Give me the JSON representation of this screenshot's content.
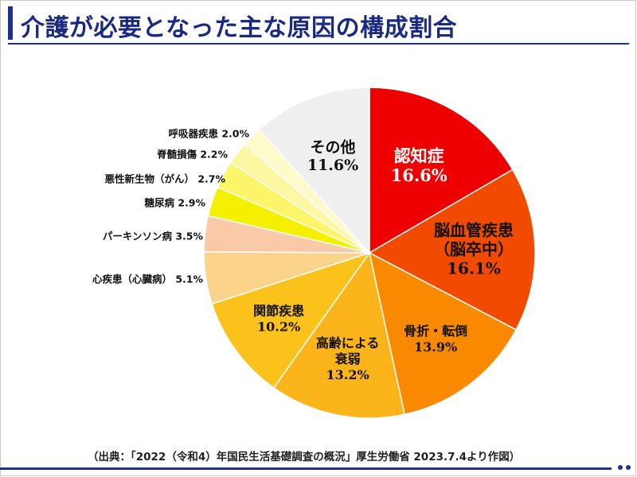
{
  "page": {
    "title": "介護が必要となった主な原因の構成割合",
    "source": "（出典：「2022（令和4）年国民生活基礎調査の概況」厚生労働省 2023.7.4より作図）"
  },
  "chart_data": {
    "type": "pie",
    "title": "介護が必要となった主な原因の構成割合",
    "unit": "%",
    "slices": [
      {
        "label": "認知症",
        "value": 16.6,
        "display": "16.6%",
        "color": "#ee0000"
      },
      {
        "label": "脳血管疾患（脳卒中）",
        "value": 16.1,
        "display": "16.1%",
        "color": "#f24b00"
      },
      {
        "label": "骨折・転倒",
        "value": 13.9,
        "display": "13.9%",
        "color": "#f98a00"
      },
      {
        "label": "高齢による衰弱",
        "value": 13.2,
        "display": "13.2%",
        "color": "#fbb41a"
      },
      {
        "label": "関節疾患",
        "value": 10.2,
        "display": "10.2%",
        "color": "#fbc21b"
      },
      {
        "label": "心疾患（心臓病）",
        "value": 5.1,
        "display": "5.1%",
        "color": "#fbd38a"
      },
      {
        "label": "パーキンソン病",
        "value": 3.5,
        "display": "3.5%",
        "color": "#f9c9a8"
      },
      {
        "label": "糖尿病",
        "value": 2.9,
        "display": "2.9%",
        "color": "#f4f000"
      },
      {
        "label": "悪性新生物（がん）",
        "value": 2.7,
        "display": "2.7%",
        "color": "#fbf56a"
      },
      {
        "label": "脊髄損傷",
        "value": 2.2,
        "display": "2.2%",
        "color": "#fcf7a0"
      },
      {
        "label": "呼吸器疾患",
        "value": 2.0,
        "display": "2.0%",
        "color": "#fdfacc"
      },
      {
        "label": "その他",
        "value": 11.6,
        "display": "11.6%",
        "color": "#efefef"
      }
    ]
  }
}
